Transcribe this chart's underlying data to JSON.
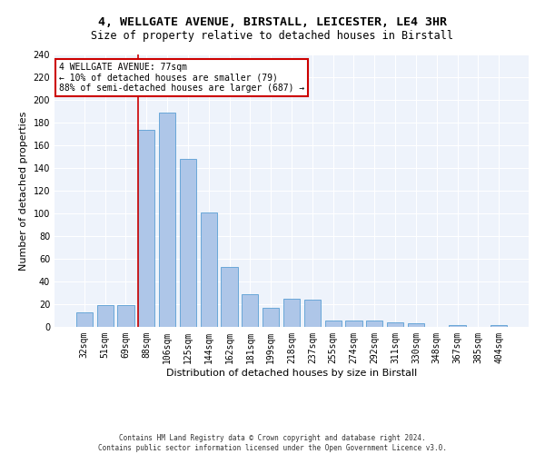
{
  "title1": "4, WELLGATE AVENUE, BIRSTALL, LEICESTER, LE4 3HR",
  "title2": "Size of property relative to detached houses in Birstall",
  "xlabel": "Distribution of detached houses by size in Birstall",
  "ylabel": "Number of detached properties",
  "footnote": "Contains HM Land Registry data © Crown copyright and database right 2024.\nContains public sector information licensed under the Open Government Licence v3.0.",
  "categories": [
    "32sqm",
    "51sqm",
    "69sqm",
    "88sqm",
    "106sqm",
    "125sqm",
    "144sqm",
    "162sqm",
    "181sqm",
    "199sqm",
    "218sqm",
    "237sqm",
    "255sqm",
    "274sqm",
    "292sqm",
    "311sqm",
    "330sqm",
    "348sqm",
    "367sqm",
    "385sqm",
    "404sqm"
  ],
  "values": [
    13,
    19,
    19,
    174,
    189,
    148,
    101,
    53,
    29,
    17,
    25,
    24,
    6,
    6,
    6,
    4,
    3,
    0,
    2,
    0,
    2
  ],
  "bar_color": "#aec6e8",
  "bar_edge_color": "#5a9fd4",
  "vline_x_index": 3,
  "vline_color": "#cc0000",
  "annotation_text": "4 WELLGATE AVENUE: 77sqm\n← 10% of detached houses are smaller (79)\n88% of semi-detached houses are larger (687) →",
  "annotation_box_color": "#ffffff",
  "annotation_box_edge_color": "#cc0000",
  "ylim": [
    0,
    240
  ],
  "yticks": [
    0,
    20,
    40,
    60,
    80,
    100,
    120,
    140,
    160,
    180,
    200,
    220,
    240
  ],
  "bg_color": "#eef3fb",
  "fig_bg_color": "#ffffff",
  "title1_fontsize": 9.5,
  "title2_fontsize": 8.5,
  "xlabel_fontsize": 8,
  "ylabel_fontsize": 8,
  "tick_fontsize": 7,
  "annotation_fontsize": 7,
  "footnote_fontsize": 5.5
}
